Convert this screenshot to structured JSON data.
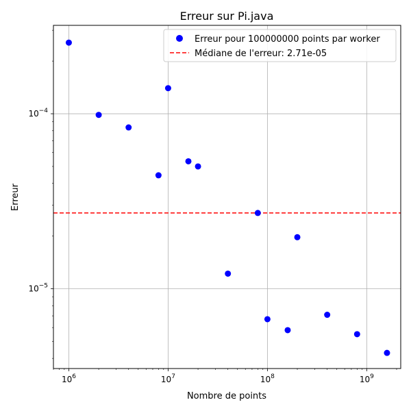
{
  "chart_data": {
    "type": "scatter",
    "title": "Erreur sur Pi.java",
    "xlabel": "Nombre de points",
    "ylabel": "Erreur",
    "xscale": "log",
    "yscale": "log",
    "xlim": [
      700000,
      2200000000
    ],
    "ylim": [
      3.5e-06,
      0.00032
    ],
    "grid": true,
    "legend_position": "top-right",
    "x_ticks": [
      {
        "value": 1000000,
        "base": "10",
        "exp": "6"
      },
      {
        "value": 10000000,
        "base": "10",
        "exp": "7"
      },
      {
        "value": 100000000,
        "base": "10",
        "exp": "8"
      },
      {
        "value": 1000000000,
        "base": "10",
        "exp": "9"
      }
    ],
    "y_ticks": [
      {
        "value": 0.0001,
        "base": "10",
        "exp": "−4"
      },
      {
        "value": 1e-05,
        "base": "10",
        "exp": "−5"
      }
    ],
    "series": [
      {
        "name": "Erreur pour 100000000 points par worker",
        "color": "#0000ff",
        "marker": "circle",
        "points": [
          {
            "x": 1000000,
            "y": 0.000255
          },
          {
            "x": 2000000,
            "y": 9.85e-05
          },
          {
            "x": 4000000,
            "y": 8.35e-05
          },
          {
            "x": 8000000,
            "y": 4.45e-05
          },
          {
            "x": 10000000,
            "y": 0.00014
          },
          {
            "x": 16000000,
            "y": 5.35e-05
          },
          {
            "x": 20000000,
            "y": 5e-05
          },
          {
            "x": 40000000,
            "y": 1.22e-05
          },
          {
            "x": 80000000,
            "y": 2.71e-05
          },
          {
            "x": 100000000,
            "y": 6.7e-06
          },
          {
            "x": 160000000,
            "y": 5.8e-06
          },
          {
            "x": 200000000,
            "y": 1.97e-05
          },
          {
            "x": 400000000,
            "y": 7.1e-06
          },
          {
            "x": 800000000,
            "y": 5.5e-06
          },
          {
            "x": 1600000000,
            "y": 4.3e-06
          }
        ]
      }
    ],
    "reference_line": {
      "name": "Médiane de l'erreur: 2.71e-05",
      "value": 2.71e-05,
      "color": "#ff0000",
      "style": "dashed"
    }
  }
}
